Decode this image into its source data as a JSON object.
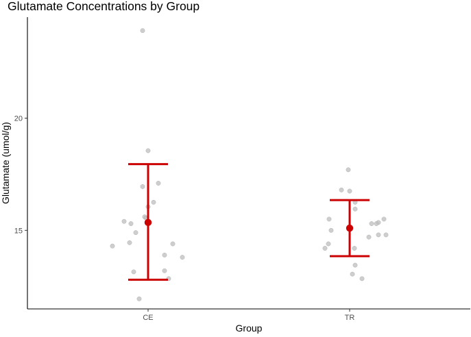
{
  "chart_data": {
    "type": "scatter",
    "title": "Glutamate Concentrations by Group",
    "xlabel": "Group",
    "ylabel": "Glutamate (umol/g)",
    "categories": [
      "CE",
      "TR"
    ],
    "ylim": [
      11.5,
      24.5
    ],
    "yticks": [
      15,
      20
    ],
    "grid": false,
    "legend": "none",
    "colors": {
      "points": "#bdbdbd",
      "summary": "#cc0000",
      "axis": "#000000",
      "text": "#000000",
      "tick_text": "#4d4d4d"
    },
    "points": [
      {
        "group": "CE",
        "jitter": -0.08,
        "y": 23.9
      },
      {
        "group": "CE",
        "jitter": 0.0,
        "y": 18.55
      },
      {
        "group": "CE",
        "jitter": 0.15,
        "y": 17.1
      },
      {
        "group": "CE",
        "jitter": -0.08,
        "y": 16.95
      },
      {
        "group": "CE",
        "jitter": 0.08,
        "y": 16.25
      },
      {
        "group": "CE",
        "jitter": 0.0,
        "y": 16.05
      },
      {
        "group": "CE",
        "jitter": -0.05,
        "y": 15.6
      },
      {
        "group": "CE",
        "jitter": -0.03,
        "y": 15.55
      },
      {
        "group": "CE",
        "jitter": -0.35,
        "y": 15.4
      },
      {
        "group": "CE",
        "jitter": -0.25,
        "y": 15.3
      },
      {
        "group": "CE",
        "jitter": -0.18,
        "y": 14.9
      },
      {
        "group": "CE",
        "jitter": -0.27,
        "y": 14.45
      },
      {
        "group": "CE",
        "jitter": 0.36,
        "y": 14.4
      },
      {
        "group": "CE",
        "jitter": -0.52,
        "y": 14.3
      },
      {
        "group": "CE",
        "jitter": 0.24,
        "y": 13.9
      },
      {
        "group": "CE",
        "jitter": 0.5,
        "y": 13.8
      },
      {
        "group": "CE",
        "jitter": 0.24,
        "y": 13.2
      },
      {
        "group": "CE",
        "jitter": -0.21,
        "y": 13.15
      },
      {
        "group": "CE",
        "jitter": 0.3,
        "y": 12.85
      },
      {
        "group": "CE",
        "jitter": -0.13,
        "y": 11.95
      },
      {
        "group": "TR",
        "jitter": -0.02,
        "y": 17.7
      },
      {
        "group": "TR",
        "jitter": -0.12,
        "y": 16.8
      },
      {
        "group": "TR",
        "jitter": 0.0,
        "y": 16.75
      },
      {
        "group": "TR",
        "jitter": 0.08,
        "y": 16.25
      },
      {
        "group": "TR",
        "jitter": 0.08,
        "y": 15.95
      },
      {
        "group": "TR",
        "jitter": -0.3,
        "y": 15.5
      },
      {
        "group": "TR",
        "jitter": 0.5,
        "y": 15.5
      },
      {
        "group": "TR",
        "jitter": 0.42,
        "y": 15.35
      },
      {
        "group": "TR",
        "jitter": 0.32,
        "y": 15.3
      },
      {
        "group": "TR",
        "jitter": 0.39,
        "y": 15.3
      },
      {
        "group": "TR",
        "jitter": -0.27,
        "y": 15.0
      },
      {
        "group": "TR",
        "jitter": 0.42,
        "y": 14.8
      },
      {
        "group": "TR",
        "jitter": 0.53,
        "y": 14.8
      },
      {
        "group": "TR",
        "jitter": 0.28,
        "y": 14.7
      },
      {
        "group": "TR",
        "jitter": -0.31,
        "y": 14.4
      },
      {
        "group": "TR",
        "jitter": -0.36,
        "y": 14.2
      },
      {
        "group": "TR",
        "jitter": 0.07,
        "y": 14.2
      },
      {
        "group": "TR",
        "jitter": 0.08,
        "y": 13.45
      },
      {
        "group": "TR",
        "jitter": 0.04,
        "y": 13.05
      },
      {
        "group": "TR",
        "jitter": 0.18,
        "y": 12.85
      }
    ],
    "summary": [
      {
        "group": "CE",
        "mean": 15.35,
        "lower": 12.8,
        "upper": 17.95
      },
      {
        "group": "TR",
        "mean": 15.1,
        "lower": 13.85,
        "upper": 16.35
      }
    ]
  }
}
